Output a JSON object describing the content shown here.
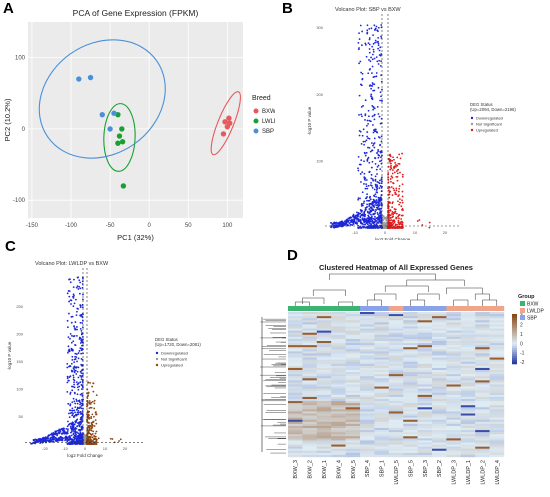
{
  "panel_labels": {
    "a": "A",
    "b": "B",
    "c": "C",
    "d": "D"
  },
  "pca": {
    "legend_title": "Breed",
    "colors": {
      "BXW": "#e8595c",
      "LWLDP": "#1aa032",
      "SBP": "#4a90d9"
    }
  },
  "volcano_b": {
    "colors": {
      "down": "#1c27d8",
      "ns": "#999999",
      "up": "#e11c1c"
    },
    "legend_title": "DEG Status",
    "legend_sub": "(Up=2094, Down=2196)",
    "legend_items": [
      "Downregulated",
      "Not Significant",
      "Upregulated"
    ],
    "seed": 11,
    "n_down": 700,
    "n_up": 320
  },
  "volcano_c": {
    "colors": {
      "down": "#1c27d8",
      "ns": "#999999",
      "up": "#8b4513"
    },
    "legend_title": "DEG Status",
    "legend_sub": "(Up=1720, Down=2081)",
    "legend_items": [
      "Downregulated",
      "Not Significant",
      "Upregulated"
    ],
    "seed": 23,
    "n_down": 650,
    "n_up": 260
  },
  "heatmap": {
    "title": "Clustered Heatmap of All Expressed Genes",
    "legend_title": "Group",
    "legend_items": [
      {
        "name": "BXW",
        "color": "#3cb371"
      },
      {
        "name": "LWLDP",
        "color": "#f0a58a"
      },
      {
        "name": "SBP",
        "color": "#8aa3e8"
      }
    ],
    "scale_labels": [
      "3",
      "2",
      "1",
      "0",
      "-1",
      "-2"
    ],
    "samples": [
      "BXW_3",
      "BXW_2",
      "BXW_1",
      "BXW_4",
      "BXW_5",
      "SBP_4",
      "SBP_1",
      "LWLDP_5",
      "SBP_5",
      "SBP_3",
      "SBP_2",
      "LWLDP_3",
      "LWLDP_1",
      "LWLDP_2",
      "LWLDP_4"
    ],
    "sample_groups": [
      "BXW",
      "BXW",
      "BXW",
      "BXW",
      "BXW",
      "SBP",
      "SBP",
      "LWLDP",
      "SBP",
      "SBP",
      "SBP",
      "LWLDP",
      "LWLDP",
      "LWLDP",
      "LWLDP"
    ],
    "rows": 70,
    "seed": 7
  },
  "chart_data": [
    {
      "type": "scatter",
      "title": "PCA of Gene Expression (FPKM)",
      "xlabel": "PC1 (32%)",
      "ylabel": "PC2 (10.2%)",
      "xlim": [
        -155,
        120
      ],
      "ylim": [
        -125,
        150
      ],
      "xticks": [
        -150,
        -100,
        -50,
        0,
        50,
        100
      ],
      "yticks": [
        -100,
        0,
        100
      ],
      "series": [
        {
          "name": "BXW",
          "x": [
            102,
            97,
            103,
            100,
            95
          ],
          "y": [
            15,
            10,
            8,
            3,
            -7
          ]
        },
        {
          "name": "LWLDP",
          "x": [
            -40,
            -35,
            -38,
            -40,
            -34,
            -33
          ],
          "y": [
            20,
            0,
            -10,
            -20,
            -18,
            -80
          ]
        },
        {
          "name": "SBP",
          "x": [
            -90,
            -75,
            -60,
            -45,
            -50
          ],
          "y": [
            70,
            72,
            20,
            22,
            0
          ]
        }
      ],
      "ellipses": [
        {
          "group": "BXW",
          "cx": 98,
          "cy": 8,
          "rx": 10,
          "ry": 95,
          "angle": 22
        },
        {
          "group": "LWLDP",
          "cx": -38,
          "cy": -12,
          "rx": 20,
          "ry": 95,
          "angle": 2
        },
        {
          "group": "SBP",
          "cx": -60,
          "cy": 42,
          "rx": 85,
          "ry": 155,
          "angle": -35
        }
      ]
    },
    {
      "type": "scatter",
      "title": "Volcano Plot: SBP vs BXW",
      "xlabel": "log2 Fold Change",
      "ylabel": "-log10 P value",
      "xlim": [
        -20,
        25
      ],
      "ylim": [
        0,
        320
      ],
      "xticks": [
        -10,
        0,
        10,
        20
      ],
      "xtick_labels": [
        "-10",
        "0",
        "10",
        "20"
      ],
      "yticks": [
        100,
        200,
        300
      ],
      "ytick_labels": [
        "100",
        "200",
        "300"
      ],
      "cutoff_x": [
        -1,
        1
      ]
    },
    {
      "type": "scatter",
      "title": "Volcano Plot: LWLDP vs BXW",
      "xlabel": "log2 Fold Change",
      "ylabel": "-log10 P value",
      "xlim": [
        -30,
        30
      ],
      "ylim": [
        0,
        320
      ],
      "xticks": [
        -20,
        -10,
        0,
        10,
        20
      ],
      "xtick_labels": [
        "-20",
        "-10",
        "0",
        "10",
        "20"
      ],
      "yticks": [
        50,
        100,
        150,
        200,
        250
      ],
      "ytick_labels": [
        "50",
        "100",
        "150",
        "200",
        "250"
      ],
      "cutoff_x": [
        -1,
        1
      ]
    },
    {
      "type": "heatmap",
      "title": "Clustered Heatmap of All Expressed Genes",
      "value_range": [
        -2,
        3
      ],
      "x": [
        "BXW_3",
        "BXW_2",
        "BXW_1",
        "BXW_4",
        "BXW_5",
        "SBP_4",
        "SBP_1",
        "LWLDP_5",
        "SBP_5",
        "SBP_3",
        "SBP_2",
        "LWLDP_3",
        "LWLDP_1",
        "LWLDP_2",
        "LWLDP_4"
      ]
    }
  ]
}
